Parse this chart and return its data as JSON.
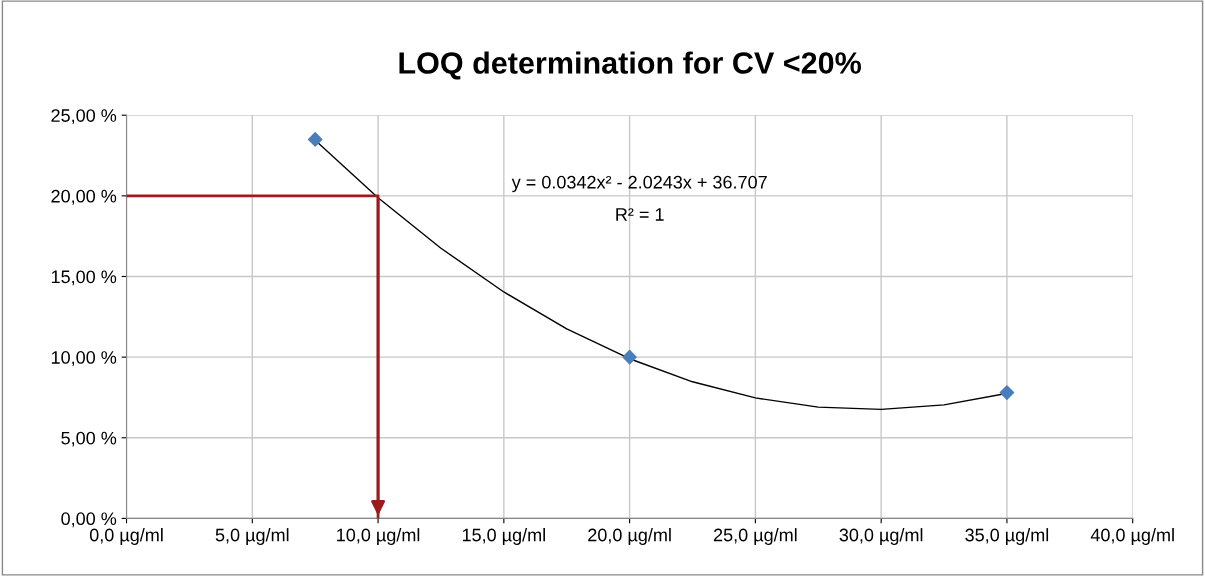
{
  "chart_data": {
    "type": "scatter",
    "title": "LOQ determination for CV <20%",
    "series": [
      {
        "color": "#4a7ebb",
        "marker": "diamond",
        "x": [
          7.5,
          20,
          35
        ],
        "values": [
          23.5,
          10.0,
          7.8
        ]
      },
      {
        "type": "line",
        "color": "#000000",
        "marker": "none",
        "line_style": "solid",
        "x": [
          7.5,
          10,
          12.5,
          15,
          17.5,
          20,
          22.5,
          25,
          27.5,
          30,
          32.5,
          35
        ],
        "values": [
          23.45,
          19.88,
          16.75,
          14.04,
          11.75,
          9.9,
          8.47,
          7.47,
          6.9,
          6.76,
          7.04,
          7.75
        ]
      },
      {
        "type": "line",
        "color": "#9b1c1c",
        "marker": "none",
        "line_style": "solid",
        "x": [
          0,
          10,
          10
        ],
        "values": [
          20,
          20,
          0
        ]
      }
    ],
    "annotations": [
      "y = 0.0342x² - 2.0243x + 36.707",
      "R² = 1"
    ],
    "xlim": [
      0,
      40
    ],
    "ylim": [
      0,
      25
    ],
    "xticks": [
      {
        "value": 0,
        "label": "0,0 µg/ml"
      },
      {
        "value": 5,
        "label": "5,0 µg/ml"
      },
      {
        "value": 10,
        "label": "10,0 µg/ml"
      },
      {
        "value": 15,
        "label": "15,0 µg/ml"
      },
      {
        "value": 20,
        "label": "20,0 µg/ml"
      },
      {
        "value": 25,
        "label": "25,0 µg/ml"
      },
      {
        "value": 30,
        "label": "30,0 µg/ml"
      },
      {
        "value": 35,
        "label": "35,0 µg/ml"
      },
      {
        "value": 40,
        "label": "40,0 µg/ml"
      }
    ],
    "yticks": [
      {
        "value": 0,
        "label": "0,00 %"
      },
      {
        "value": 5,
        "label": "5,00 %"
      },
      {
        "value": 10,
        "label": "10,00 %"
      },
      {
        "value": 15,
        "label": "15,00 %"
      },
      {
        "value": 20,
        "label": "20,00 %"
      },
      {
        "value": 25,
        "label": "25,00 %"
      }
    ],
    "grid": true,
    "legend": false
  }
}
